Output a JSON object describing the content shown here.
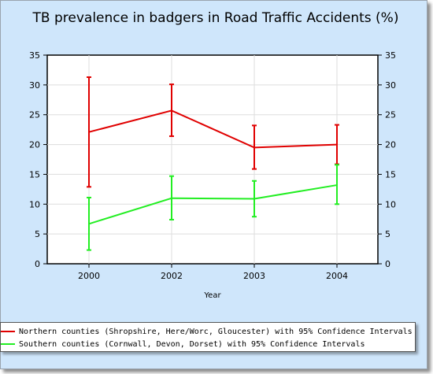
{
  "chart_data": {
    "type": "line",
    "title": "TB prevalence in badgers in Road Traffic Accidents (%)",
    "xlabel": "Year",
    "ylabel": "",
    "categories": [
      "2000",
      "2002",
      "2003",
      "2004"
    ],
    "ylim": [
      0,
      35
    ],
    "yticks": [
      0,
      5,
      10,
      15,
      20,
      25,
      30,
      35
    ],
    "grid": true,
    "legend_position": "bottom",
    "series": [
      {
        "name": "Northern counties (Shropshire, Here/Worc, Gloucester) with 95% Confidence Intervals",
        "color": "#e00000",
        "values": [
          22.1,
          25.7,
          19.5,
          20.0
        ],
        "lower": [
          12.9,
          21.4,
          15.9,
          16.7
        ],
        "upper": [
          31.3,
          30.1,
          23.2,
          23.3
        ]
      },
      {
        "name": "Southern counties (Cornwall, Devon, Dorset) with 95% Confidence Intervals",
        "color": "#22ee22",
        "values": [
          6.7,
          11.0,
          10.9,
          13.2
        ],
        "lower": [
          2.3,
          7.4,
          7.9,
          10.0
        ],
        "upper": [
          11.1,
          14.7,
          13.9,
          16.6
        ]
      }
    ]
  }
}
